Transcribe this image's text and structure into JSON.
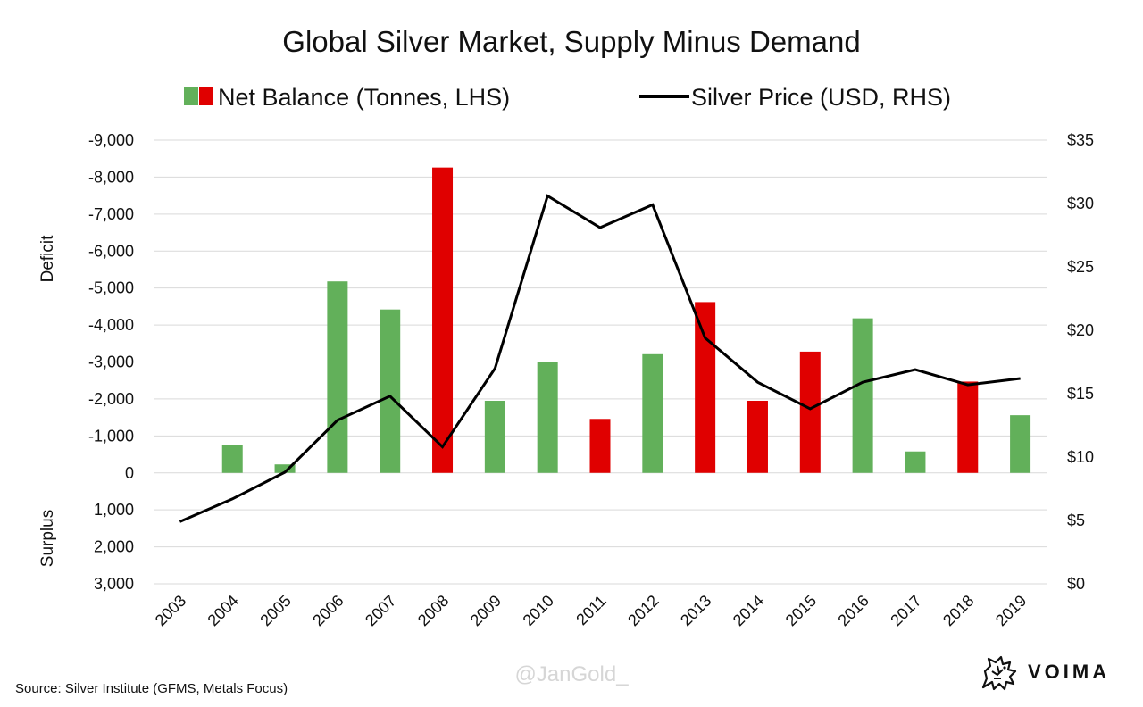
{
  "chart_data": {
    "type": "bar",
    "title": "Global Silver Market, Supply Minus Demand",
    "categories": [
      "2003",
      "2004",
      "2005",
      "2006",
      "2007",
      "2008",
      "2009",
      "2010",
      "2011",
      "2012",
      "2013",
      "2014",
      "2015",
      "2016",
      "2017",
      "2018",
      "2019"
    ],
    "series": [
      {
        "name": "Net Balance (Tonnes, LHS)",
        "type": "bar",
        "axis": "left",
        "values": [
          0,
          -750,
          -230,
          -5180,
          -4420,
          -8260,
          -1950,
          -3000,
          -1460,
          -3210,
          -4620,
          -1950,
          -3280,
          -4180,
          -580,
          -2470,
          -1560
        ],
        "colors": [
          "#62b05a",
          "#62b05a",
          "#62b05a",
          "#62b05a",
          "#62b05a",
          "#e00000",
          "#62b05a",
          "#62b05a",
          "#e00000",
          "#62b05a",
          "#e00000",
          "#e00000",
          "#e00000",
          "#62b05a",
          "#62b05a",
          "#e00000",
          "#62b05a"
        ]
      },
      {
        "name": "Silver Price (USD, RHS)",
        "type": "line",
        "axis": "right",
        "color": "#000000",
        "values": [
          4.9,
          6.7,
          8.8,
          12.9,
          14.8,
          10.8,
          17.0,
          30.6,
          28.1,
          29.9,
          19.4,
          15.9,
          13.8,
          15.9,
          16.9,
          15.7,
          16.2
        ]
      }
    ],
    "left_axis": {
      "reversed": true,
      "range": [
        -9000,
        3000
      ],
      "ticks": [
        -9000,
        -8000,
        -7000,
        -6000,
        -5000,
        -4000,
        -3000,
        -2000,
        -1000,
        0,
        1000,
        2000,
        3000
      ],
      "tick_labels": [
        "-9,000",
        "-8,000",
        "-7,000",
        "-6,000",
        "-5,000",
        "-4,000",
        "-3,000",
        "-2,000",
        "-1,000",
        "0",
        "1,000",
        "2,000",
        "3,000"
      ],
      "upper_label": "Deficit",
      "lower_label": "Surplus"
    },
    "right_axis": {
      "range": [
        0,
        35
      ],
      "ticks": [
        0,
        5,
        10,
        15,
        20,
        25,
        30,
        35
      ],
      "tick_labels": [
        "$0",
        "$5",
        "$10",
        "$15",
        "$20",
        "$25",
        "$30",
        "$35"
      ]
    },
    "grid": true,
    "legend_position": "top"
  },
  "footer": {
    "source": "Source: Silver Institute (GFMS, Metals Focus)",
    "watermark": "@JanGold_",
    "brand": "VOIMA"
  },
  "colors": {
    "surplus_bar": "#62b05a",
    "deficit_bar": "#e00000",
    "price_line": "#000000"
  },
  "icons": {
    "brand_logo": "voima-griffin-icon"
  }
}
